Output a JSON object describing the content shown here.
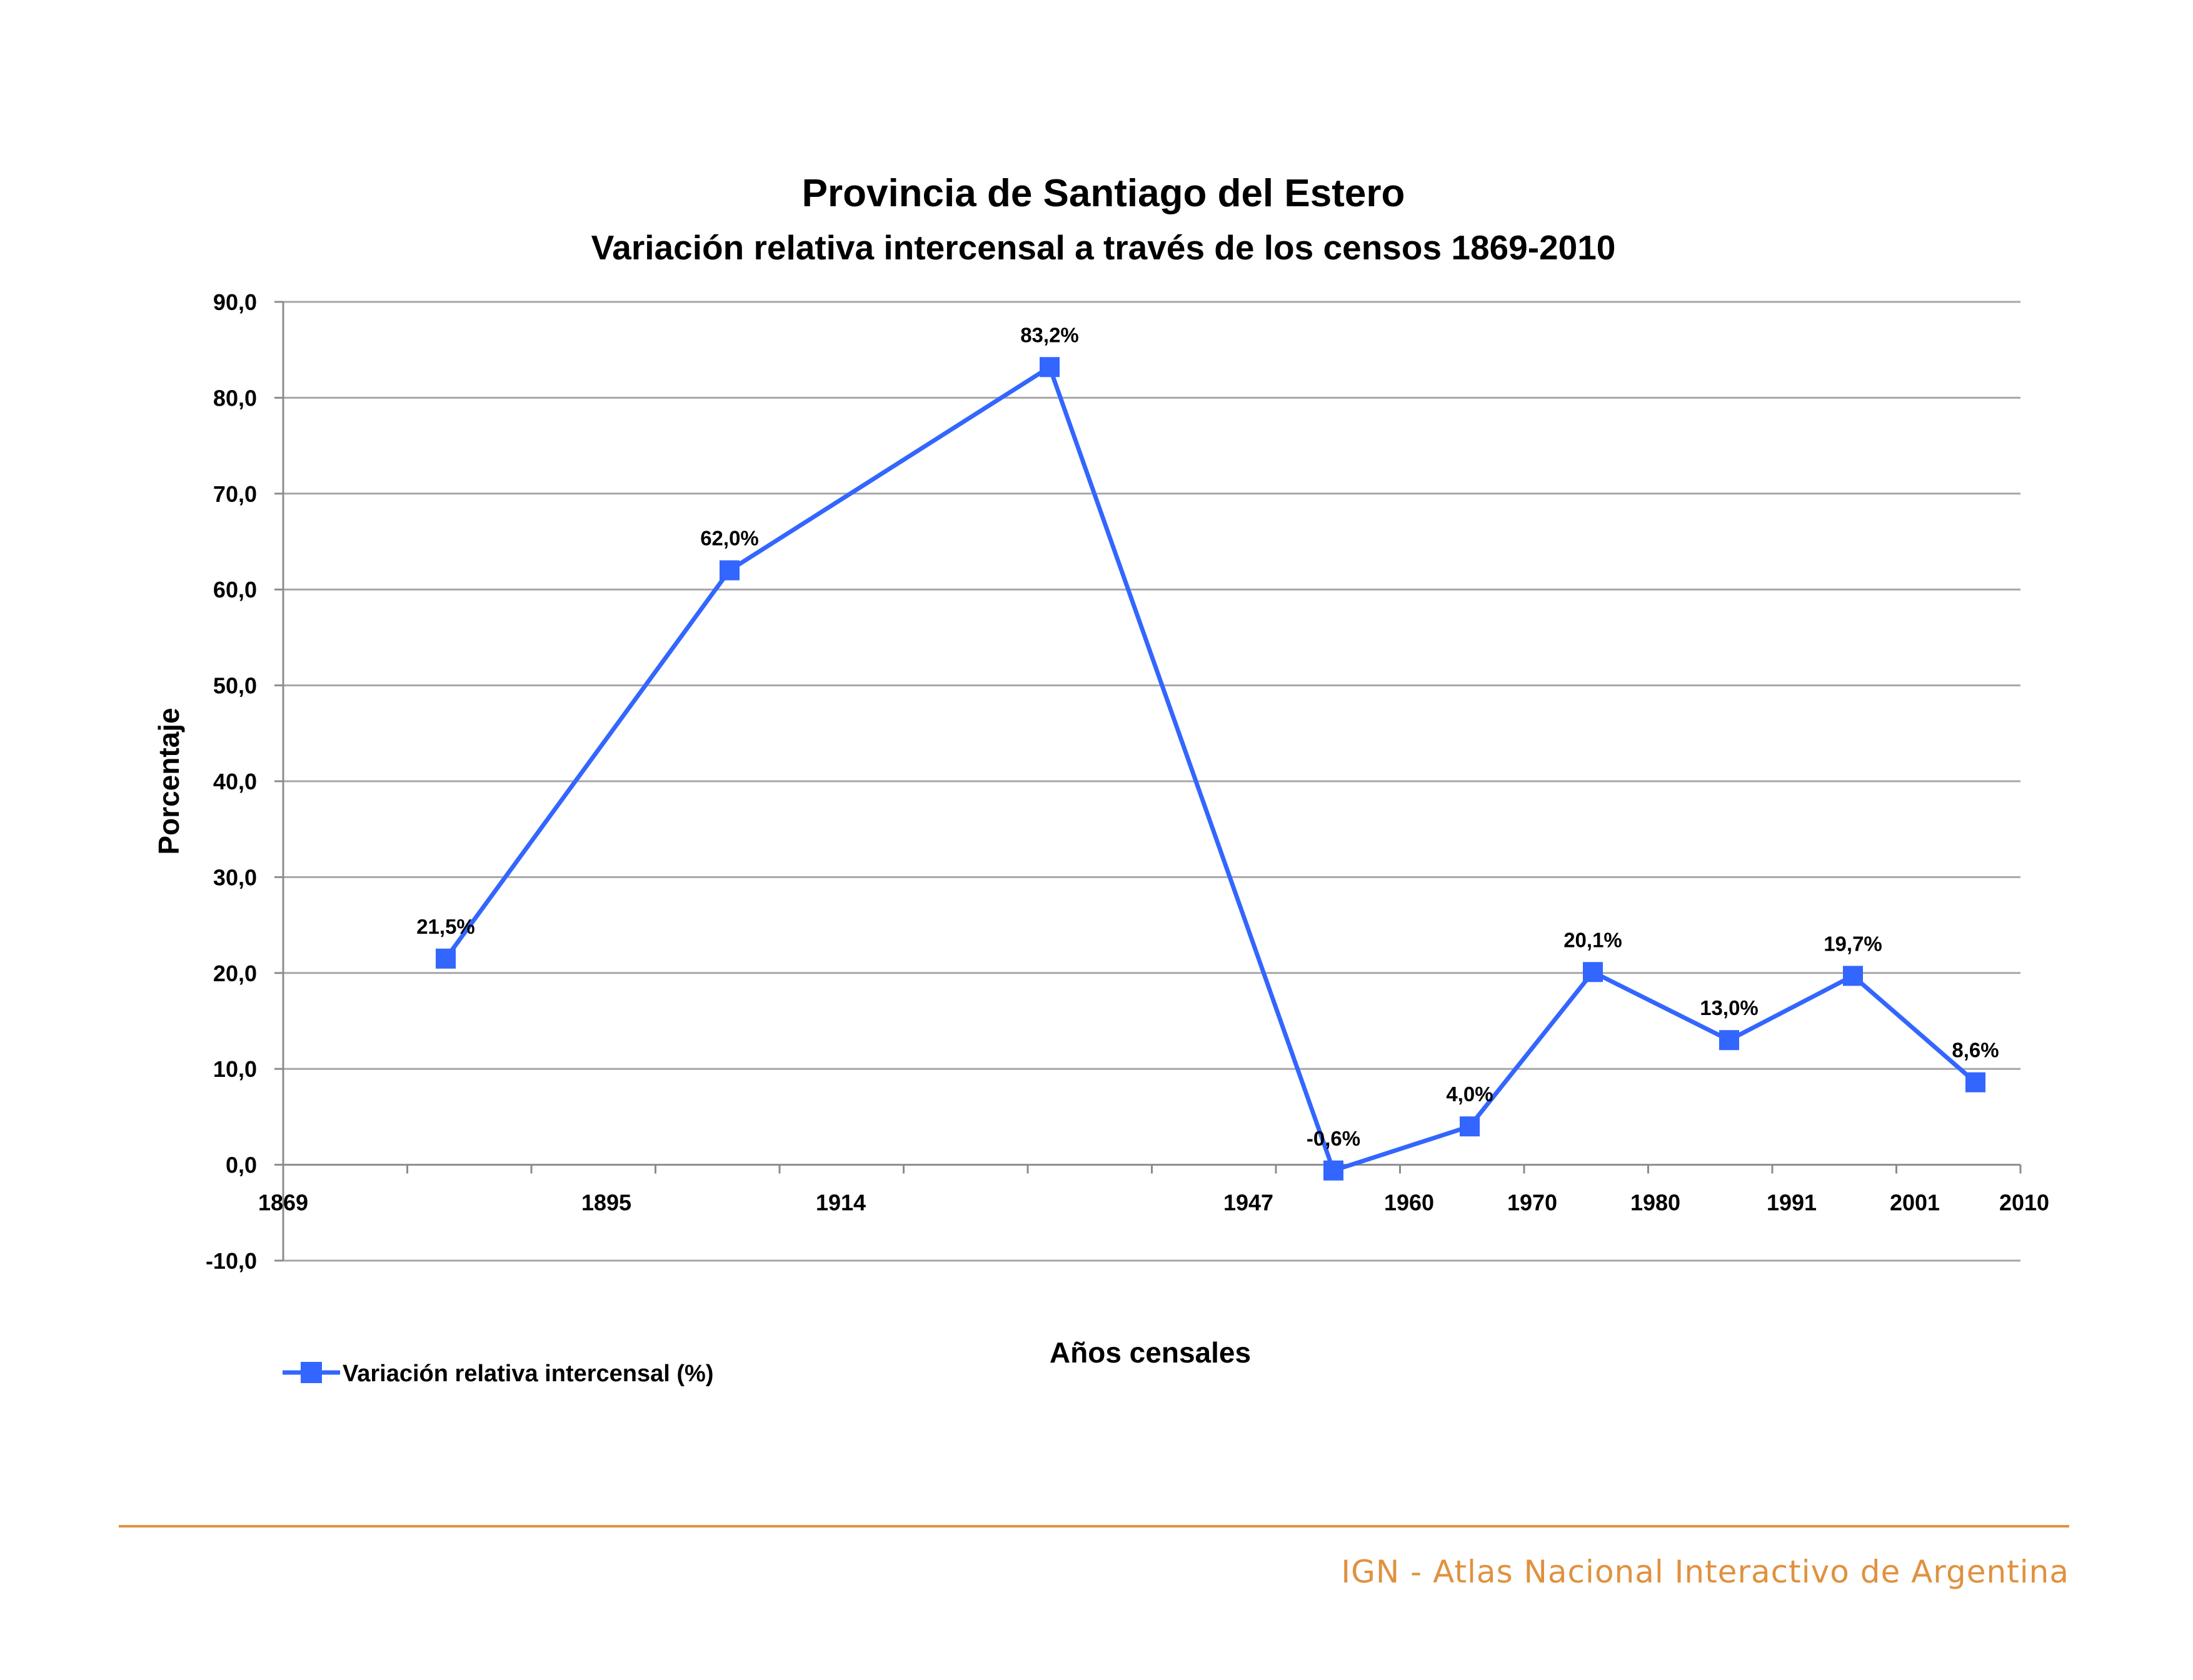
{
  "chart_data": {
    "type": "line",
    "title": "Provincia de Santiago del Estero",
    "subtitle": "Variación relativa intercensal a través de los censos 1869-2010",
    "xlabel": "Años censales",
    "ylabel": "Porcentaje",
    "x_tick_labels": [
      "1869",
      "1895",
      "1914",
      "1947",
      "1960",
      "1970",
      "1980",
      "1991",
      "2001",
      "2010"
    ],
    "y_tick_labels": [
      "90,0",
      "80,0",
      "70,0",
      "60,0",
      "50,0",
      "40,0",
      "30,0",
      "20,0",
      "10,0",
      "0,0",
      "-10,0"
    ],
    "ylim": [
      -10,
      90
    ],
    "grid": true,
    "legend_position": "bottom-left",
    "series": [
      {
        "name": "Variación relativa intercensal (%)",
        "color": "#3366ff",
        "marker": "square",
        "values": [
          21.5,
          62.0,
          83.2,
          -0.6,
          4.0,
          20.1,
          13.0,
          19.7,
          8.6
        ],
        "labels": [
          "21,5%",
          "62,0%",
          "83,2%",
          "-0,6%",
          "4,0%",
          "20,1%",
          "13,0%",
          "19,7%",
          "8,6%"
        ]
      }
    ]
  },
  "footer": {
    "text": "IGN - Atlas Nacional Interactivo de Argentina"
  }
}
